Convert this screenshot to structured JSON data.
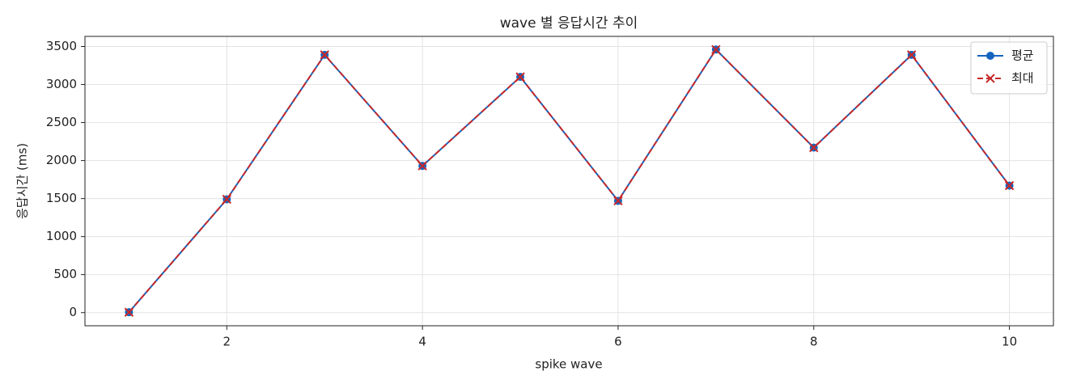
{
  "chart_data": {
    "type": "line",
    "title": "wave 별 응답시간 추이",
    "xlabel": "spike wave",
    "ylabel": "응답시간 (ms)",
    "x": [
      1,
      2,
      3,
      4,
      5,
      6,
      7,
      8,
      9,
      10
    ],
    "series": [
      {
        "name": "평균",
        "color": "#1565c0",
        "marker": "o",
        "linestyle": "solid",
        "values": [
          5,
          1490,
          3390,
          1930,
          3100,
          1470,
          3460,
          2170,
          3390,
          1670
        ]
      },
      {
        "name": "최대",
        "color": "#c62828",
        "marker": "x",
        "linestyle": "dashed",
        "values": [
          5,
          1490,
          3390,
          1930,
          3100,
          1470,
          3460,
          2170,
          3390,
          1670
        ]
      }
    ],
    "xlim": [
      0.55,
      10.45
    ],
    "ylim": [
      -173,
      3633
    ],
    "xticks": [
      2,
      4,
      6,
      8,
      10
    ],
    "yticks": [
      0,
      500,
      1000,
      1500,
      2000,
      2500,
      3000,
      3500
    ],
    "grid": true,
    "legend": "upper right"
  }
}
